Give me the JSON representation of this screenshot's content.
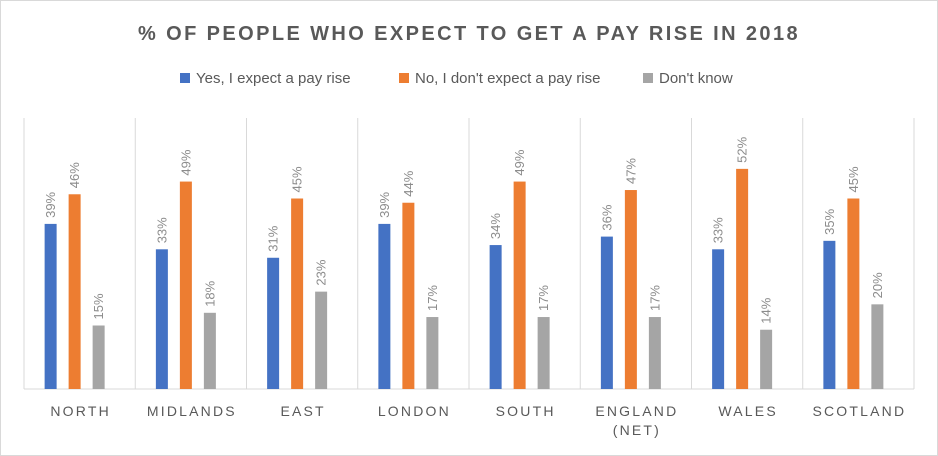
{
  "chart_data": {
    "type": "bar",
    "title": "% OF PEOPLE WHO EXPECT TO GET A PAY RISE IN 2018",
    "categories": [
      "NORTH",
      "MIDLANDS",
      "EAST",
      "LONDON",
      "SOUTH",
      "ENGLAND (NET)",
      "WALES",
      "SCOTLAND"
    ],
    "series": [
      {
        "name": "Yes, I expect a pay rise",
        "color": "#4472c4",
        "values": [
          39,
          33,
          31,
          39,
          34,
          36,
          33,
          35
        ],
        "labels": [
          "39%",
          "33%",
          "31%",
          "39%",
          "34%",
          "36%",
          "33%",
          "35%"
        ]
      },
      {
        "name": "No, I don't expect a pay rise",
        "color": "#ed7d31",
        "values": [
          46,
          49,
          45,
          44,
          49,
          47,
          52,
          45
        ],
        "labels": [
          "46%",
          "49%",
          "45%",
          "44%",
          "49%",
          "47%",
          "52%",
          "45%"
        ]
      },
      {
        "name": "Don't know",
        "color": "#a5a5a5",
        "values": [
          15,
          18,
          23,
          17,
          17,
          17,
          14,
          20
        ],
        "labels": [
          "15%",
          "18%",
          "23%",
          "17%",
          "17%",
          "17%",
          "14%",
          "20%"
        ]
      }
    ],
    "ylim": [
      0,
      60
    ],
    "grid": false,
    "legend_position": "top",
    "category_dividers": true
  }
}
